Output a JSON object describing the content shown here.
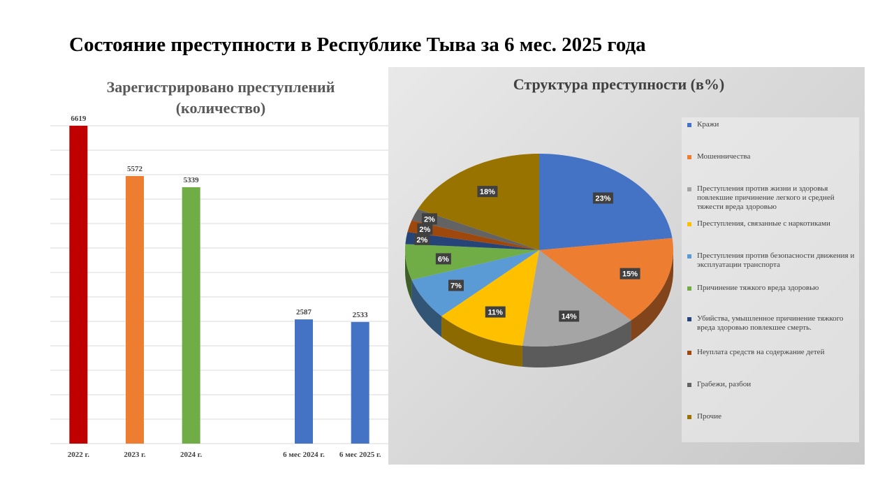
{
  "slide": {
    "title": "Состояние преступности в Республике Тыва за 6 мес. 2025 года"
  },
  "chart_data": [
    {
      "type": "bar",
      "title_line1": "Зарегистрировано преступлений",
      "title_line2": "(количество)",
      "categories": [
        "2022 г.",
        "2023 г.",
        "2024 г.",
        "",
        "6 мес 2024 г.",
        "6 мес 2025 г."
      ],
      "values": [
        6619,
        5572,
        5339,
        null,
        2587,
        2533
      ],
      "value_labels": [
        "6619",
        "5572",
        "5339",
        "",
        "2587",
        "2533"
      ],
      "colors": [
        "#C00000",
        "#ED7D31",
        "#70AD47",
        "",
        "#4472C4",
        "#4472C4"
      ],
      "ylim": [
        0,
        6619
      ],
      "grid": true
    },
    {
      "type": "pie",
      "title": "Структура преступности (в%)",
      "labels": [
        "Кражи",
        "Мошенничества",
        "Преступления против жизни и здоровья повлекшие причинение легкого и средней тяжести вреда здоровью",
        "Преступления, связанные с наркотиками",
        "Преступления против безопасности движения и эксплуатации транспорта",
        "Причинение тяжкого вреда здоровью",
        "Убийства, умышленное причинение тяжкого вреда здоровью повлекшее смерть.",
        "Неуплата средств на содержание детей",
        "Грабежи, разбои",
        "Прочие"
      ],
      "values": [
        23,
        15,
        14,
        11,
        7,
        6,
        2,
        2,
        2,
        18
      ],
      "value_labels": [
        "23%",
        "15%",
        "14%",
        "11%",
        "7%",
        "6%",
        "2%",
        "2%",
        "2%",
        "18%"
      ],
      "colors": [
        "#4472C4",
        "#ED7D31",
        "#A5A5A5",
        "#FFC000",
        "#5B9BD5",
        "#70AD47",
        "#264478",
        "#9E480E",
        "#636363",
        "#997300"
      ],
      "legend_position": "right"
    }
  ]
}
